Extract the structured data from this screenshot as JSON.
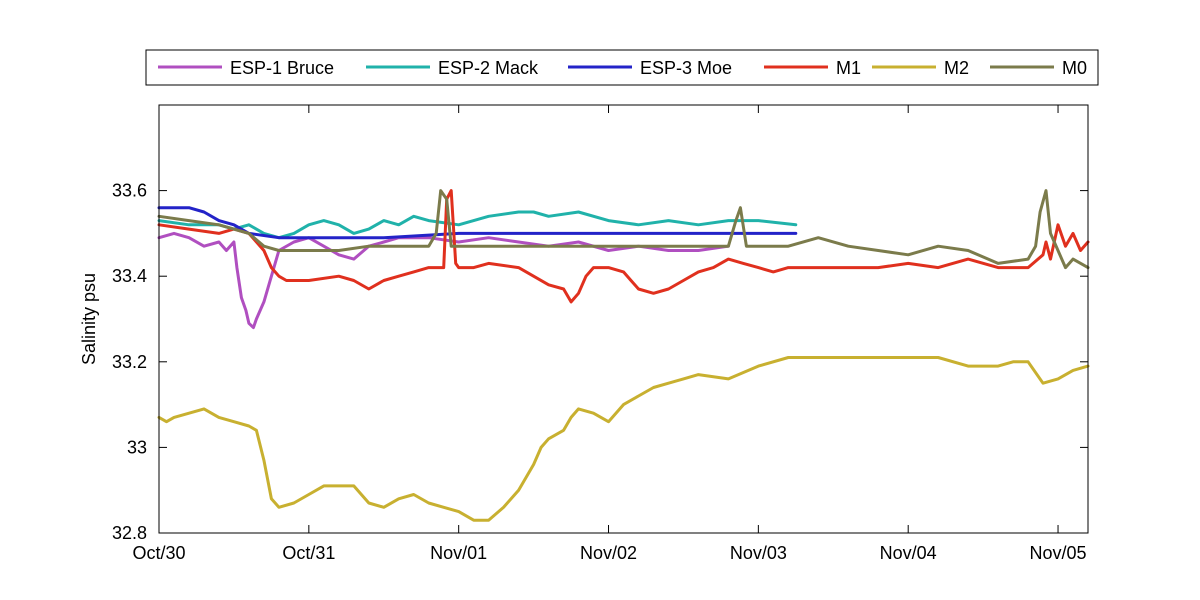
{
  "chart_data": {
    "type": "line",
    "ylabel": "Salinity psu",
    "xlim": [
      0,
      6.2
    ],
    "ylim": [
      32.8,
      33.8
    ],
    "x_unit": "days since Oct/30",
    "x_ticks": [
      {
        "value": 0,
        "label": "Oct/30"
      },
      {
        "value": 1,
        "label": "Oct/31"
      },
      {
        "value": 2,
        "label": "Nov/01"
      },
      {
        "value": 3,
        "label": "Nov/02"
      },
      {
        "value": 4,
        "label": "Nov/03"
      },
      {
        "value": 5,
        "label": "Nov/04"
      },
      {
        "value": 6,
        "label": "Nov/05"
      }
    ],
    "y_ticks": [
      {
        "value": 32.8,
        "label": "32.8"
      },
      {
        "value": 33.0,
        "label": "33"
      },
      {
        "value": 33.2,
        "label": "33.2"
      },
      {
        "value": 33.4,
        "label": "33.4"
      },
      {
        "value": 33.6,
        "label": "33.6"
      }
    ],
    "grid": false,
    "legend_position": "top",
    "series": [
      {
        "name": "ESP-1 Bruce",
        "color": "#b04fc0",
        "x": [
          0,
          0.1,
          0.2,
          0.3,
          0.4,
          0.45,
          0.5,
          0.52,
          0.55,
          0.58,
          0.6,
          0.63,
          0.65,
          0.7,
          0.75,
          0.8,
          0.9,
          1.0,
          1.1,
          1.2,
          1.3,
          1.4,
          1.5,
          1.6,
          1.8,
          2.0,
          2.2,
          2.4,
          2.6,
          2.8,
          3.0,
          3.2,
          3.4,
          3.6,
          3.8
        ],
        "values": [
          33.49,
          33.5,
          33.49,
          33.47,
          33.48,
          33.46,
          33.48,
          33.42,
          33.35,
          33.32,
          33.29,
          33.28,
          33.3,
          33.34,
          33.4,
          33.46,
          33.48,
          33.49,
          33.47,
          33.45,
          33.44,
          33.47,
          33.48,
          33.49,
          33.49,
          33.48,
          33.49,
          33.48,
          33.47,
          33.48,
          33.46,
          33.47,
          33.46,
          33.46,
          33.47
        ]
      },
      {
        "name": "ESP-2 Mack",
        "color": "#20b2aa",
        "x": [
          0,
          0.2,
          0.4,
          0.5,
          0.6,
          0.7,
          0.8,
          0.9,
          1.0,
          1.1,
          1.2,
          1.3,
          1.4,
          1.5,
          1.6,
          1.7,
          1.8,
          2.0,
          2.1,
          2.2,
          2.4,
          2.5,
          2.6,
          2.8,
          3.0,
          3.2,
          3.4,
          3.6,
          3.8,
          4.0,
          4.25
        ],
        "values": [
          33.53,
          33.52,
          33.52,
          33.51,
          33.52,
          33.5,
          33.49,
          33.5,
          33.52,
          33.53,
          33.52,
          33.5,
          33.51,
          33.53,
          33.52,
          33.54,
          33.53,
          33.52,
          33.53,
          33.54,
          33.55,
          33.55,
          33.54,
          33.55,
          33.53,
          33.52,
          33.53,
          33.52,
          33.53,
          33.53,
          33.52
        ]
      },
      {
        "name": "ESP-3 Moe",
        "color": "#2323c8",
        "x": [
          0,
          0.2,
          0.3,
          0.4,
          0.5,
          0.6,
          0.8,
          1.0,
          1.5,
          2.0,
          2.5,
          3.0,
          3.5,
          4.0,
          4.25
        ],
        "values": [
          33.56,
          33.56,
          33.55,
          33.53,
          33.52,
          33.5,
          33.49,
          33.49,
          33.49,
          33.5,
          33.5,
          33.5,
          33.5,
          33.5,
          33.5
        ]
      },
      {
        "name": "M1",
        "color": "#e0301e",
        "x": [
          0,
          0.2,
          0.4,
          0.5,
          0.6,
          0.7,
          0.75,
          0.8,
          0.85,
          0.9,
          1.0,
          1.2,
          1.3,
          1.4,
          1.5,
          1.6,
          1.7,
          1.8,
          1.9,
          1.92,
          1.95,
          1.98,
          2.0,
          2.1,
          2.2,
          2.4,
          2.5,
          2.6,
          2.7,
          2.75,
          2.8,
          2.85,
          2.9,
          3.0,
          3.1,
          3.15,
          3.2,
          3.3,
          3.4,
          3.5,
          3.6,
          3.7,
          3.8,
          3.9,
          4.0,
          4.1,
          4.2,
          4.4,
          4.6,
          4.8,
          5.0,
          5.2,
          5.4,
          5.6,
          5.8,
          5.9,
          5.92,
          5.95,
          6.0,
          6.05,
          6.1,
          6.15,
          6.2
        ],
        "values": [
          33.52,
          33.51,
          33.5,
          33.51,
          33.5,
          33.46,
          33.42,
          33.4,
          33.39,
          33.39,
          33.39,
          33.4,
          33.39,
          33.37,
          33.39,
          33.4,
          33.41,
          33.42,
          33.42,
          33.58,
          33.6,
          33.43,
          33.42,
          33.42,
          33.43,
          33.42,
          33.4,
          33.38,
          33.37,
          33.34,
          33.36,
          33.4,
          33.42,
          33.42,
          33.41,
          33.39,
          33.37,
          33.36,
          33.37,
          33.39,
          33.41,
          33.42,
          33.44,
          33.43,
          33.42,
          33.41,
          33.42,
          33.42,
          33.42,
          33.42,
          33.43,
          33.42,
          33.44,
          33.42,
          33.42,
          33.45,
          33.48,
          33.44,
          33.52,
          33.47,
          33.5,
          33.46,
          33.48
        ]
      },
      {
        "name": "M2",
        "color": "#c8b030",
        "x": [
          0,
          0.05,
          0.1,
          0.2,
          0.3,
          0.4,
          0.5,
          0.6,
          0.65,
          0.7,
          0.75,
          0.8,
          0.9,
          1.0,
          1.1,
          1.2,
          1.3,
          1.4,
          1.5,
          1.6,
          1.7,
          1.8,
          1.9,
          2.0,
          2.1,
          2.2,
          2.3,
          2.4,
          2.45,
          2.5,
          2.55,
          2.6,
          2.65,
          2.7,
          2.75,
          2.8,
          2.9,
          3.0,
          3.1,
          3.2,
          3.3,
          3.4,
          3.5,
          3.6,
          3.8,
          4.0,
          4.2,
          4.4,
          4.6,
          4.8,
          5.0,
          5.2,
          5.4,
          5.6,
          5.7,
          5.8,
          5.9,
          6.0,
          6.1,
          6.2
        ],
        "values": [
          33.07,
          33.06,
          33.07,
          33.08,
          33.09,
          33.07,
          33.06,
          33.05,
          33.04,
          32.97,
          32.88,
          32.86,
          32.87,
          32.89,
          32.91,
          32.91,
          32.91,
          32.87,
          32.86,
          32.88,
          32.89,
          32.87,
          32.86,
          32.85,
          32.83,
          32.83,
          32.86,
          32.9,
          32.93,
          32.96,
          33.0,
          33.02,
          33.03,
          33.04,
          33.07,
          33.09,
          33.08,
          33.06,
          33.1,
          33.12,
          33.14,
          33.15,
          33.16,
          33.17,
          33.16,
          33.19,
          33.21,
          33.21,
          33.21,
          33.21,
          33.21,
          33.21,
          33.19,
          33.19,
          33.2,
          33.2,
          33.15,
          33.16,
          33.18,
          33.19
        ]
      },
      {
        "name": "M0",
        "color": "#7b7b4b",
        "x": [
          0,
          0.2,
          0.4,
          0.6,
          0.7,
          0.8,
          1.0,
          1.2,
          1.4,
          1.6,
          1.8,
          1.85,
          1.88,
          1.92,
          1.95,
          2.0,
          2.2,
          2.4,
          2.6,
          2.8,
          3.0,
          3.2,
          3.4,
          3.6,
          3.8,
          3.85,
          3.88,
          3.92,
          4.0,
          4.2,
          4.4,
          4.6,
          4.8,
          5.0,
          5.2,
          5.4,
          5.6,
          5.8,
          5.85,
          5.88,
          5.92,
          5.95,
          6.0,
          6.05,
          6.1,
          6.2
        ],
        "values": [
          33.54,
          33.53,
          33.52,
          33.5,
          33.47,
          33.46,
          33.46,
          33.46,
          33.47,
          33.47,
          33.47,
          33.5,
          33.6,
          33.58,
          33.47,
          33.47,
          33.47,
          33.47,
          33.47,
          33.47,
          33.47,
          33.47,
          33.47,
          33.47,
          33.47,
          33.53,
          33.56,
          33.47,
          33.47,
          33.47,
          33.49,
          33.47,
          33.46,
          33.45,
          33.47,
          33.46,
          33.43,
          33.44,
          33.47,
          33.55,
          33.6,
          33.5,
          33.46,
          33.42,
          33.44,
          33.42
        ]
      }
    ]
  }
}
